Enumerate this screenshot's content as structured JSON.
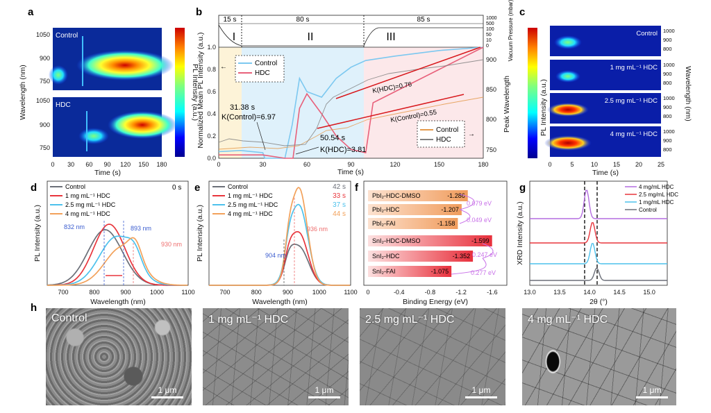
{
  "panel_labels": [
    "a",
    "b",
    "c",
    "d",
    "e",
    "f",
    "g",
    "h"
  ],
  "a": {
    "ylabel": "Wavelength (nm)",
    "xlabel": "Time (s)",
    "cbar_label": "PL Intensity (a.u.)",
    "top_label": "Control",
    "bottom_label": "HDC",
    "yticks_top": [
      "1050",
      "900",
      "750"
    ],
    "yticks_bottom": [
      "1050",
      "900",
      "750"
    ],
    "xticks": [
      "0",
      "30",
      "60",
      "90",
      "120",
      "150",
      "180"
    ]
  },
  "b": {
    "phases": [
      {
        "name": "I",
        "dur": "15 s"
      },
      {
        "name": "II",
        "dur": "80 s"
      },
      {
        "name": "III",
        "dur": "85 s"
      }
    ],
    "ylabel": "Normalized Mean PL Intensity (a.u.)",
    "xlabel": "Time (s)",
    "y2label": "Peak Wavelength",
    "y3label": "Vacuum Pressure (mbar)",
    "legend": [
      "Control",
      "HDC"
    ],
    "legend2": [
      "Control",
      "HDC"
    ],
    "annot": {
      "t1": "31.38 s",
      "k1": "K(Control)=6.97",
      "t2": "50.54 s",
      "k2": "K(HDC)=3.81",
      "kh": "K(HDC)=0.76",
      "kc": "K(Control)=0.55"
    },
    "yticks": [
      "0.0",
      "0.2",
      "0.4",
      "0.6",
      "0.8",
      "1.0"
    ],
    "xticks": [
      "0",
      "30",
      "60",
      "90",
      "120",
      "150",
      "180"
    ],
    "y2ticks": [
      "750",
      "800",
      "850",
      "900"
    ],
    "y3ticks": [
      "1000",
      "500",
      "100",
      "50",
      "10",
      "0"
    ]
  },
  "c": {
    "labels": [
      "Control",
      "1 mg mL⁻¹ HDC",
      "2.5 mg mL⁻¹ HDC",
      "4 mg mL⁻¹ HDC"
    ],
    "ylabel": "Wavelength (nm)",
    "cbar_label": "PL Intensity (a.u.)",
    "xlabel": "Time (s)",
    "xticks": [
      "0",
      "5",
      "10",
      "15",
      "20",
      "25"
    ],
    "yticks": [
      "1000",
      "900",
      "800"
    ]
  },
  "d": {
    "ylabel": "PL Intensity (a.u.)",
    "xlabel": "Wavelength (nm)",
    "time": "0 s",
    "legend": [
      "Control",
      "1 mg mL⁻¹ HDC",
      "2.5 mg mL⁻¹ HDC",
      "4 mg mL⁻¹ HDC"
    ],
    "annot": [
      "832 nm",
      "893 nm",
      "930 nm"
    ],
    "xticks": [
      "700",
      "800",
      "900",
      "1000",
      "1100"
    ]
  },
  "e": {
    "ylabel": "PL Intensity (a.u.)",
    "xlabel": "Wavelength (nm)",
    "legend": [
      "Control",
      "1 mg mL⁻¹ HDC",
      "2.5 mg mL⁻¹ HDC",
      "4 mg mL⁻¹ HDC"
    ],
    "times": [
      "42 s",
      "33 s",
      "37 s",
      "44 s"
    ],
    "annot": [
      "904 nm",
      "936 nm"
    ],
    "xticks": [
      "700",
      "800",
      "900",
      "1000",
      "1100"
    ]
  },
  "f": {
    "xlabel": "Binding Energy (eV)",
    "xticks": [
      "0",
      "-0.4",
      "-0.8",
      "-1.2",
      "-1.6"
    ],
    "bars": [
      {
        "label": "PbI₂-HDC-DMSO",
        "value": -1.286
      },
      {
        "label": "PbI₂-HDC",
        "value": -1.207
      },
      {
        "label": "PbI₂-FAI",
        "value": -1.158
      },
      {
        "label": "SnI₂-HDC-DMSO",
        "value": -1.599
      },
      {
        "label": "SnI₂-HDC",
        "value": -1.352
      },
      {
        "label": "SnI₂-FAI",
        "value": -1.075
      }
    ],
    "diffs": [
      "0.079 eV",
      "0.049 eV",
      "0.247 eV",
      "0.277 eV"
    ]
  },
  "g": {
    "ylabel": "XRD Intensity (a.u.)",
    "xlabel": "2θ (°)",
    "legend": [
      "4 mg/mL HDC",
      "2.5 mg/mL HDC",
      "1 mg/mL HDC",
      "Control"
    ],
    "xticks": [
      "13.0",
      "13.5",
      "14.0",
      "14.5",
      "15.0"
    ]
  },
  "h": {
    "images": [
      "Control",
      "1 mg mL⁻¹ HDC",
      "2.5 mg mL⁻¹ HDC",
      "4 mg mL⁻¹ HDC"
    ],
    "scale": "1 μm"
  },
  "colors": {
    "control": "#6b6f78",
    "c1": "#e8353c",
    "c25": "#4cc1ec",
    "c4": "#f2a15a",
    "blue": "#7ab8e8",
    "pink": "#e8607a"
  },
  "chart_data": [
    {
      "type": "line",
      "title": "b",
      "xlabel": "Time (s)",
      "ylabel": "Normalized Mean PL Intensity (a.u.)",
      "xlim": [
        0,
        180
      ],
      "ylim": [
        0,
        1.0
      ],
      "series": [
        {
          "name": "Control",
          "x": [
            0,
            15,
            30,
            31.38,
            45,
            50,
            55,
            60,
            70,
            80,
            90,
            100,
            120,
            150,
            180
          ],
          "y": [
            0.06,
            0.07,
            0.05,
            0.0,
            0.0,
            0.3,
            0.72,
            0.6,
            0.55,
            0.72,
            0.82,
            0.88,
            0.92,
            0.97,
            1.0
          ]
        },
        {
          "name": "HDC",
          "x": [
            0,
            15,
            30,
            45,
            50.54,
            55,
            60,
            70,
            80,
            90,
            100,
            105,
            120,
            150,
            180
          ],
          "y": [
            0.03,
            0.03,
            0.03,
            0.0,
            0.0,
            0.45,
            0.58,
            0.4,
            0.2,
            0.08,
            0.05,
            0.5,
            0.6,
            0.8,
            1.0
          ]
        }
      ]
    },
    {
      "type": "bar",
      "title": "f",
      "xlabel": "Binding Energy (eV)",
      "categories": [
        "PbI₂-HDC-DMSO",
        "PbI₂-HDC",
        "PbI₂-FAI",
        "SnI₂-HDC-DMSO",
        "SnI₂-HDC",
        "SnI₂-FAI"
      ],
      "values": [
        -1.286,
        -1.207,
        -1.158,
        -1.599,
        -1.352,
        -1.075
      ]
    },
    {
      "type": "line",
      "title": "d",
      "xlabel": "Wavelength (nm)",
      "ylabel": "PL Intensity (a.u.)",
      "xlim": [
        650,
        1100
      ],
      "series": [
        {
          "name": "Control",
          "peak": 832
        },
        {
          "name": "1 mg mL⁻¹ HDC",
          "peak": 850
        },
        {
          "name": "2.5 mg mL⁻¹ HDC",
          "peak": 893
        },
        {
          "name": "4 mg mL⁻¹ HDC",
          "peak": 930
        }
      ]
    },
    {
      "type": "line",
      "title": "e",
      "xlabel": "Wavelength (nm)",
      "ylabel": "PL Intensity (a.u.)",
      "xlim": [
        650,
        1100
      ],
      "series": [
        {
          "name": "Control",
          "peak": 936
        },
        {
          "name": "1 mg mL⁻¹ HDC",
          "peak": 936
        },
        {
          "name": "2.5 mg mL⁻¹ HDC",
          "peak": 936
        },
        {
          "name": "4 mg mL⁻¹ HDC",
          "peak": 936
        }
      ]
    },
    {
      "type": "line",
      "title": "g",
      "xlabel": "2θ (°)",
      "ylabel": "XRD Intensity (a.u.)",
      "xlim": [
        13.0,
        15.3
      ],
      "series": [
        {
          "name": "4 mg/mL HDC",
          "peak": 13.95
        },
        {
          "name": "2.5 mg/mL HDC",
          "peak": 14.05
        },
        {
          "name": "1 mg/mL HDC",
          "peak": 14.05
        },
        {
          "name": "Control",
          "peak": 14.12
        }
      ]
    }
  ]
}
